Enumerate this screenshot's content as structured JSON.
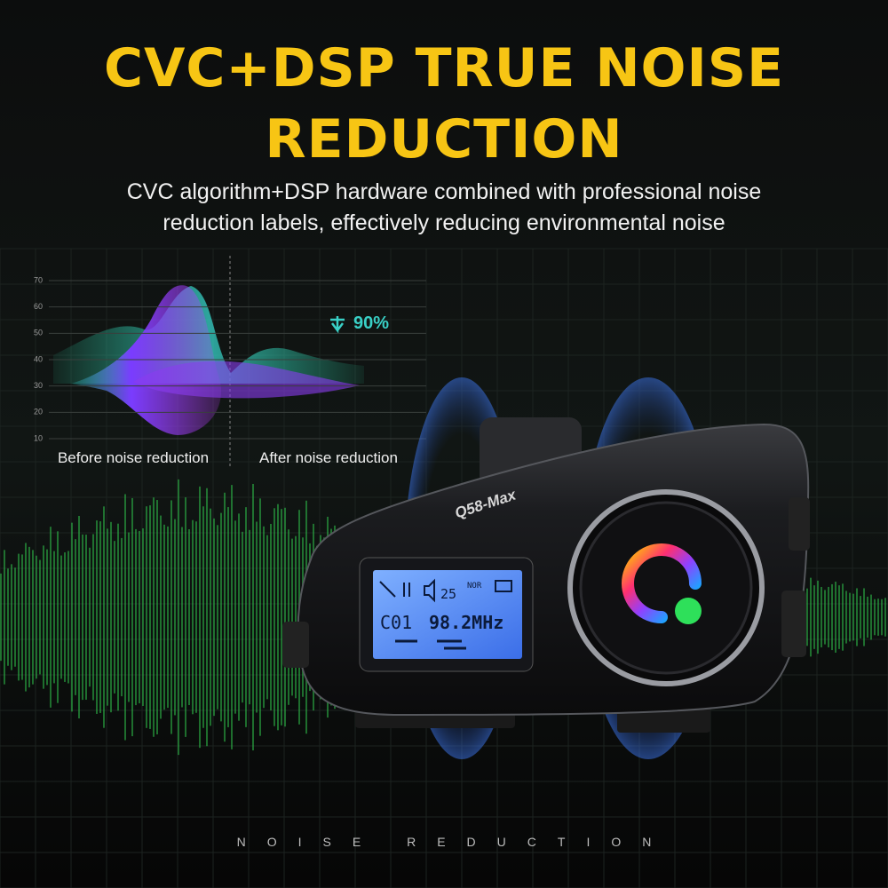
{
  "header": {
    "title_line1": "CVC+DSP TRUE NOISE",
    "title_line2": "REDUCTION",
    "subtitle_line1": "CVC algorithm+DSP hardware combined with professional noise",
    "subtitle_line2": "reduction labels, effectively reducing environmental noise"
  },
  "graph": {
    "yticks": [
      10,
      20,
      30,
      40,
      50,
      60,
      70
    ],
    "reduction": "90%",
    "before_label": "Before noise reduction",
    "after_label": "After noise reduction"
  },
  "device": {
    "model": "Q58-Max",
    "volume": "25",
    "mode": "NOR",
    "channel": "C01",
    "frequency": "98.2MHz"
  },
  "footer": {
    "text": "NOISE REDUCTION"
  }
}
